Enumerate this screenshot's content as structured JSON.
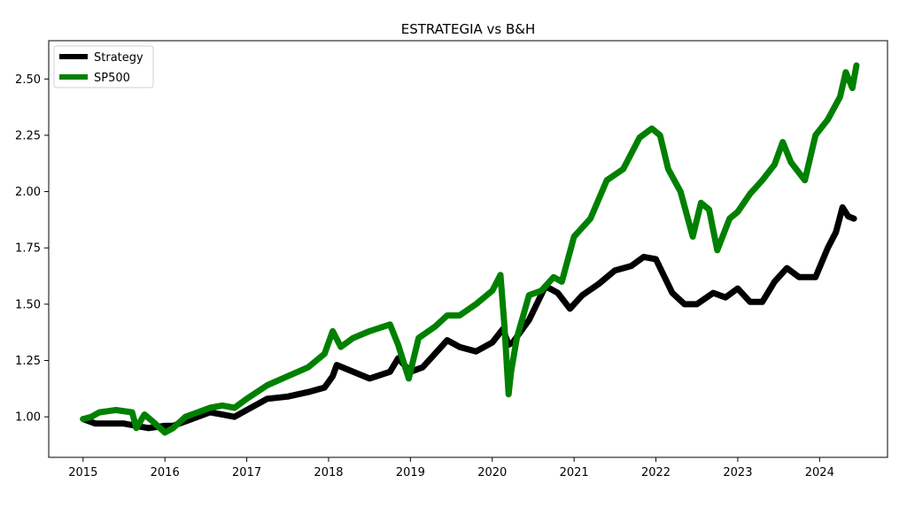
{
  "chart_data": {
    "type": "line",
    "title": "ESTRATEGIA vs B&H",
    "xlabel": "",
    "ylabel": "",
    "xlim": [
      2014.58,
      2024.83
    ],
    "ylim": [
      0.82,
      2.67
    ],
    "x_ticks": [
      "2015",
      "2016",
      "2017",
      "2018",
      "2019",
      "2020",
      "2021",
      "2022",
      "2023",
      "2024"
    ],
    "y_ticks": [
      "1.00",
      "1.25",
      "1.50",
      "1.75",
      "2.00",
      "2.25",
      "2.50"
    ],
    "grid": false,
    "legend_position": "upper-left",
    "series": [
      {
        "name": "Strategy",
        "color": "#000000",
        "x": [
          2015.0,
          2015.15,
          2015.3,
          2015.5,
          2015.65,
          2015.8,
          2016.0,
          2016.1,
          2016.25,
          2016.4,
          2016.55,
          2016.7,
          2016.85,
          2017.0,
          2017.25,
          2017.5,
          2017.75,
          2017.95,
          2018.05,
          2018.1,
          2018.5,
          2018.75,
          2018.85,
          2019.0,
          2019.15,
          2019.3,
          2019.45,
          2019.6,
          2019.8,
          2020.0,
          2020.13,
          2020.2,
          2020.25,
          2020.45,
          2020.65,
          2020.8,
          2020.95,
          2021.1,
          2021.3,
          2021.5,
          2021.7,
          2021.85,
          2022.0,
          2022.2,
          2022.35,
          2022.5,
          2022.7,
          2022.85,
          2023.0,
          2023.15,
          2023.3,
          2023.45,
          2023.6,
          2023.75,
          2023.95,
          2024.1,
          2024.2,
          2024.28,
          2024.35,
          2024.42
        ],
        "values": [
          0.99,
          0.97,
          0.97,
          0.97,
          0.96,
          0.95,
          0.96,
          0.96,
          0.98,
          1.0,
          1.02,
          1.01,
          1.0,
          1.03,
          1.08,
          1.09,
          1.11,
          1.13,
          1.18,
          1.23,
          1.17,
          1.2,
          1.26,
          1.2,
          1.22,
          1.28,
          1.34,
          1.31,
          1.29,
          1.33,
          1.39,
          1.32,
          1.33,
          1.43,
          1.58,
          1.55,
          1.48,
          1.54,
          1.59,
          1.65,
          1.67,
          1.71,
          1.7,
          1.55,
          1.5,
          1.5,
          1.55,
          1.53,
          1.57,
          1.51,
          1.51,
          1.6,
          1.66,
          1.62,
          1.62,
          1.75,
          1.82,
          1.93,
          1.89,
          1.88
        ]
      },
      {
        "name": "SP500",
        "color": "#008000",
        "x": [
          2015.0,
          2015.1,
          2015.2,
          2015.4,
          2015.6,
          2015.65,
          2015.75,
          2015.85,
          2016.0,
          2016.1,
          2016.25,
          2016.4,
          2016.55,
          2016.7,
          2016.85,
          2017.0,
          2017.25,
          2017.5,
          2017.75,
          2017.95,
          2018.05,
          2018.15,
          2018.3,
          2018.5,
          2018.75,
          2018.85,
          2018.98,
          2019.1,
          2019.3,
          2019.45,
          2019.6,
          2019.8,
          2020.0,
          2020.1,
          2020.15,
          2020.2,
          2020.23,
          2020.3,
          2020.45,
          2020.6,
          2020.75,
          2020.85,
          2021.0,
          2021.2,
          2021.4,
          2021.6,
          2021.8,
          2021.95,
          2022.05,
          2022.15,
          2022.3,
          2022.45,
          2022.55,
          2022.65,
          2022.75,
          2022.9,
          2023.0,
          2023.15,
          2023.3,
          2023.45,
          2023.55,
          2023.65,
          2023.82,
          2023.95,
          2024.1,
          2024.25,
          2024.32,
          2024.4,
          2024.45
        ],
        "values": [
          0.99,
          1.0,
          1.02,
          1.03,
          1.02,
          0.95,
          1.01,
          0.98,
          0.93,
          0.95,
          1.0,
          1.02,
          1.04,
          1.05,
          1.04,
          1.08,
          1.14,
          1.18,
          1.22,
          1.28,
          1.38,
          1.31,
          1.35,
          1.38,
          1.41,
          1.32,
          1.17,
          1.35,
          1.4,
          1.45,
          1.45,
          1.5,
          1.56,
          1.63,
          1.4,
          1.1,
          1.2,
          1.35,
          1.54,
          1.56,
          1.62,
          1.6,
          1.8,
          1.88,
          2.05,
          2.1,
          2.24,
          2.28,
          2.25,
          2.1,
          2.0,
          1.8,
          1.95,
          1.92,
          1.74,
          1.88,
          1.91,
          1.99,
          2.05,
          2.12,
          2.22,
          2.13,
          2.05,
          2.25,
          2.32,
          2.42,
          2.53,
          2.46,
          2.56
        ]
      }
    ]
  }
}
